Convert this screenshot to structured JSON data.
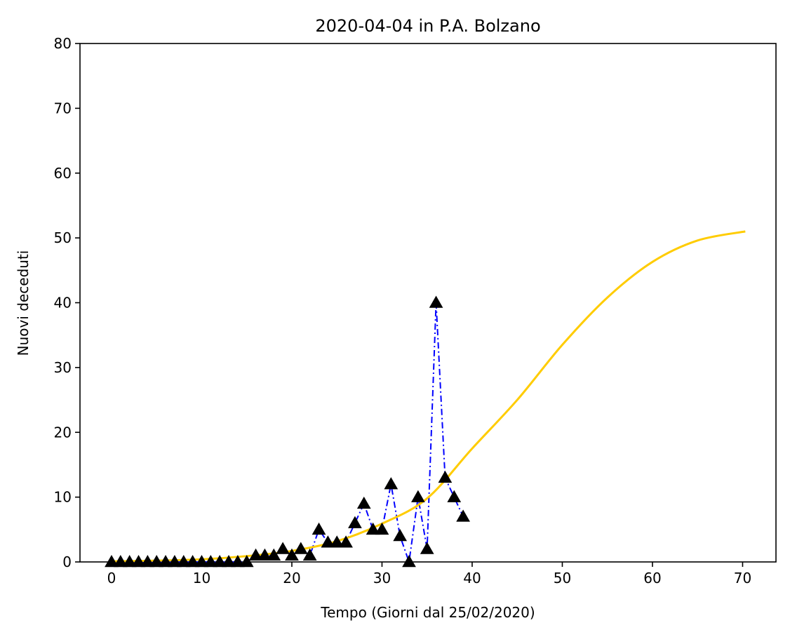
{
  "chart_data": {
    "type": "line",
    "title": "2020-04-04 in P.A. Bolzano",
    "xlabel": "Tempo (Giorni dal 25/02/2020)",
    "ylabel": "Nuovi deceduti",
    "xlim": [
      -3.5,
      73.7
    ],
    "ylim": [
      0,
      80
    ],
    "xticks": [
      0,
      10,
      20,
      30,
      40,
      50,
      60,
      70
    ],
    "yticks": [
      0,
      10,
      20,
      30,
      40,
      50,
      60,
      70,
      80
    ],
    "grid": false,
    "series": [
      {
        "style": "dash-dot line with triangle markers",
        "line_color": "#0000ff",
        "marker_color": "#000000",
        "x": [
          0,
          1,
          2,
          3,
          4,
          5,
          6,
          7,
          8,
          9,
          10,
          11,
          12,
          13,
          14,
          15,
          16,
          17,
          18,
          19,
          20,
          21,
          22,
          23,
          24,
          25,
          26,
          27,
          28,
          29,
          30,
          31,
          32,
          33,
          34,
          35,
          36,
          37,
          38,
          39
        ],
        "values": [
          0,
          0,
          0,
          0,
          0,
          0,
          0,
          0,
          0,
          0,
          0,
          0,
          0,
          0,
          0,
          0,
          1,
          1,
          1,
          2,
          1,
          2,
          1,
          5,
          3,
          3,
          3,
          6,
          9,
          5,
          5,
          12,
          4,
          0,
          10,
          2,
          40,
          13,
          10,
          7
        ]
      },
      {
        "style": "solid line",
        "color": "#ffcc00",
        "x": [
          0,
          5,
          10,
          15,
          20,
          25,
          30,
          35,
          40,
          45,
          50,
          55,
          60,
          65,
          70.3
        ],
        "values": [
          0.1,
          0.2,
          0.4,
          0.9,
          1.7,
          3.2,
          5.9,
          9.8,
          17.5,
          25.0,
          33.5,
          40.8,
          46.3,
          49.6,
          51.0
        ]
      }
    ]
  }
}
